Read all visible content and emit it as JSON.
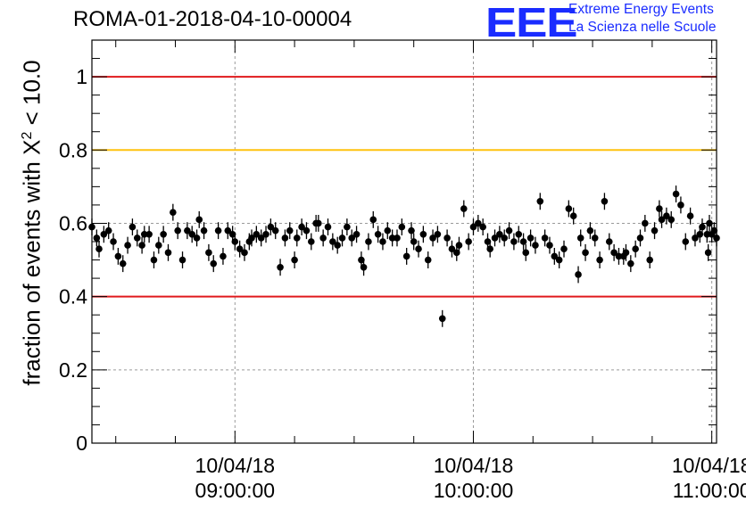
{
  "chart_data": {
    "type": "scatter",
    "title": "ROMA-01-2018-04-10-00004",
    "ylabel": "fraction of events with X² < 10.0",
    "ylabel_parts": {
      "prefix": "fraction of events with X",
      "sup": "2",
      "suffix": " < 10.0"
    },
    "ylim": [
      0,
      1.1
    ],
    "xlim_hours": [
      8.4,
      11.02
    ],
    "yticks": [
      {
        "v": 0,
        "label": "0"
      },
      {
        "v": 0.2,
        "label": "0.2"
      },
      {
        "v": 0.4,
        "label": "0.4"
      },
      {
        "v": 0.6,
        "label": "0.6"
      },
      {
        "v": 0.8,
        "label": "0.8"
      },
      {
        "v": 1,
        "label": "1"
      }
    ],
    "xticks": [
      {
        "h": 9,
        "date": "10/04/18",
        "time": "09:00:00"
      },
      {
        "h": 10,
        "date": "10/04/18",
        "time": "10:00:00"
      },
      {
        "h": 11,
        "date": "10/04/18",
        "time": "11:00:00"
      }
    ],
    "grid": true,
    "reference_lines": [
      {
        "y": 1.0,
        "color": "#e0191c"
      },
      {
        "y": 0.8,
        "color": "#ffc20e"
      },
      {
        "y": 0.4,
        "color": "#e0191c"
      }
    ],
    "marker_color": "#000000",
    "error_bar": 0.023,
    "points": [
      [
        8.4,
        0.59
      ],
      [
        8.42,
        0.56
      ],
      [
        8.43,
        0.53
      ],
      [
        8.45,
        0.57
      ],
      [
        8.47,
        0.58
      ],
      [
        8.49,
        0.55
      ],
      [
        8.51,
        0.51
      ],
      [
        8.53,
        0.49
      ],
      [
        8.55,
        0.54
      ],
      [
        8.57,
        0.59
      ],
      [
        8.59,
        0.56
      ],
      [
        8.61,
        0.54
      ],
      [
        8.62,
        0.57
      ],
      [
        8.64,
        0.57
      ],
      [
        8.66,
        0.5
      ],
      [
        8.68,
        0.54
      ],
      [
        8.7,
        0.57
      ],
      [
        8.72,
        0.52
      ],
      [
        8.74,
        0.63
      ],
      [
        8.76,
        0.58
      ],
      [
        8.78,
        0.5
      ],
      [
        8.8,
        0.58
      ],
      [
        8.82,
        0.57
      ],
      [
        8.84,
        0.56
      ],
      [
        8.85,
        0.61
      ],
      [
        8.87,
        0.58
      ],
      [
        8.89,
        0.52
      ],
      [
        8.91,
        0.49
      ],
      [
        8.93,
        0.58
      ],
      [
        8.95,
        0.51
      ],
      [
        8.97,
        0.58
      ],
      [
        8.99,
        0.57
      ],
      [
        9.0,
        0.55
      ],
      [
        9.02,
        0.53
      ],
      [
        9.04,
        0.52
      ],
      [
        9.06,
        0.55
      ],
      [
        9.07,
        0.56
      ],
      [
        9.09,
        0.57
      ],
      [
        9.11,
        0.56
      ],
      [
        9.13,
        0.57
      ],
      [
        9.15,
        0.59
      ],
      [
        9.17,
        0.58
      ],
      [
        9.19,
        0.48
      ],
      [
        9.21,
        0.56
      ],
      [
        9.23,
        0.58
      ],
      [
        9.25,
        0.5
      ],
      [
        9.26,
        0.56
      ],
      [
        9.28,
        0.59
      ],
      [
        9.3,
        0.58
      ],
      [
        9.32,
        0.55
      ],
      [
        9.34,
        0.6
      ],
      [
        9.35,
        0.6
      ],
      [
        9.37,
        0.56
      ],
      [
        9.39,
        0.59
      ],
      [
        9.41,
        0.55
      ],
      [
        9.43,
        0.54
      ],
      [
        9.45,
        0.56
      ],
      [
        9.47,
        0.59
      ],
      [
        9.49,
        0.56
      ],
      [
        9.51,
        0.57
      ],
      [
        9.53,
        0.5
      ],
      [
        9.54,
        0.48
      ],
      [
        9.56,
        0.55
      ],
      [
        9.58,
        0.61
      ],
      [
        9.6,
        0.57
      ],
      [
        9.62,
        0.55
      ],
      [
        9.64,
        0.58
      ],
      [
        9.66,
        0.56
      ],
      [
        9.68,
        0.56
      ],
      [
        9.7,
        0.59
      ],
      [
        9.72,
        0.51
      ],
      [
        9.74,
        0.58
      ],
      [
        9.75,
        0.55
      ],
      [
        9.77,
        0.53
      ],
      [
        9.79,
        0.57
      ],
      [
        9.81,
        0.5
      ],
      [
        9.83,
        0.56
      ],
      [
        9.85,
        0.57
      ],
      [
        9.87,
        0.34
      ],
      [
        9.89,
        0.56
      ],
      [
        9.91,
        0.53
      ],
      [
        9.93,
        0.52
      ],
      [
        9.94,
        0.54
      ],
      [
        9.96,
        0.64
      ],
      [
        9.98,
        0.55
      ],
      [
        10.0,
        0.59
      ],
      [
        10.02,
        0.6
      ],
      [
        10.04,
        0.59
      ],
      [
        10.06,
        0.55
      ],
      [
        10.07,
        0.53
      ],
      [
        10.09,
        0.56
      ],
      [
        10.11,
        0.57
      ],
      [
        10.13,
        0.56
      ],
      [
        10.15,
        0.58
      ],
      [
        10.17,
        0.55
      ],
      [
        10.19,
        0.57
      ],
      [
        10.21,
        0.55
      ],
      [
        10.22,
        0.52
      ],
      [
        10.24,
        0.56
      ],
      [
        10.26,
        0.54
      ],
      [
        10.28,
        0.66
      ],
      [
        10.3,
        0.56
      ],
      [
        10.32,
        0.54
      ],
      [
        10.34,
        0.51
      ],
      [
        10.36,
        0.5
      ],
      [
        10.38,
        0.53
      ],
      [
        10.4,
        0.64
      ],
      [
        10.42,
        0.62
      ],
      [
        10.44,
        0.46
      ],
      [
        10.45,
        0.56
      ],
      [
        10.47,
        0.52
      ],
      [
        10.49,
        0.58
      ],
      [
        10.51,
        0.56
      ],
      [
        10.53,
        0.5
      ],
      [
        10.55,
        0.66
      ],
      [
        10.57,
        0.55
      ],
      [
        10.59,
        0.52
      ],
      [
        10.61,
        0.51
      ],
      [
        10.63,
        0.51
      ],
      [
        10.64,
        0.52
      ],
      [
        10.66,
        0.49
      ],
      [
        10.68,
        0.53
      ],
      [
        10.7,
        0.56
      ],
      [
        10.72,
        0.6
      ],
      [
        10.74,
        0.5
      ],
      [
        10.76,
        0.58
      ],
      [
        10.78,
        0.64
      ],
      [
        10.79,
        0.61
      ],
      [
        10.81,
        0.62
      ],
      [
        10.83,
        0.61
      ],
      [
        10.85,
        0.68
      ],
      [
        10.87,
        0.65
      ],
      [
        10.89,
        0.55
      ],
      [
        10.91,
        0.62
      ],
      [
        10.93,
        0.56
      ],
      [
        10.95,
        0.57
      ],
      [
        10.96,
        0.59
      ],
      [
        10.98,
        0.57
      ],
      [
        11.0,
        0.57
      ],
      [
        10.985,
        0.52
      ],
      [
        10.99,
        0.6
      ],
      [
        11.01,
        0.58
      ],
      [
        11.02,
        0.56
      ]
    ]
  },
  "logo": {
    "mark": "EEE",
    "line1": "Extreme Energy Events",
    "line2": "La Scienza nelle Scuole"
  }
}
